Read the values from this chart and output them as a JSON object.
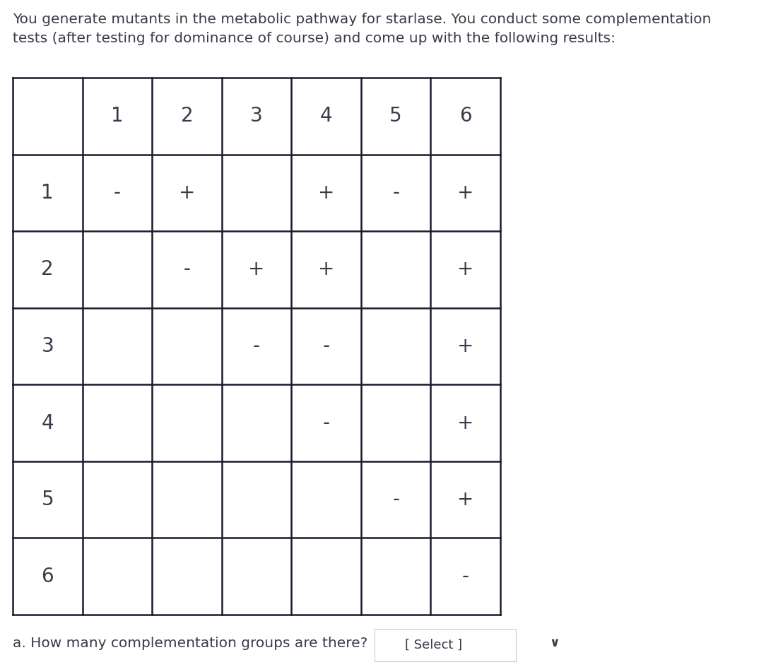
{
  "title_text": "You generate mutants in the metabolic pathway for starlase. You conduct some complementation\ntests (after testing for dominance of course) and come up with the following results:",
  "title_fontsize": 14.5,
  "col_headers": [
    "",
    "1",
    "2",
    "3",
    "4",
    "5",
    "6"
  ],
  "row_headers": [
    "1",
    "2",
    "3",
    "4",
    "5",
    "6"
  ],
  "table_data": [
    [
      "-",
      "+",
      "",
      "+",
      "-",
      "+"
    ],
    [
      "",
      "-",
      "+",
      "+",
      "",
      "+"
    ],
    [
      "",
      "",
      "-",
      "-",
      "",
      "+"
    ],
    [
      "",
      "",
      "",
      "-",
      "",
      "+"
    ],
    [
      "",
      "",
      "",
      "",
      "-",
      "+"
    ],
    [
      "",
      "",
      "",
      "",
      "",
      "-"
    ]
  ],
  "question_text": "a. How many complementation groups are there?",
  "question_fontsize": 14.5,
  "select_text": "[ Select ]",
  "bg_color": "#ffffff",
  "table_line_color": "#1a1a2e",
  "text_color": "#3a3a4a",
  "select_border_color": "#cccccc",
  "chevron_color": "#3a3a4a",
  "header_fontsize": 20,
  "cell_fontsize": 20,
  "row_header_fontsize": 20,
  "fig_width": 11.08,
  "fig_height": 9.44
}
